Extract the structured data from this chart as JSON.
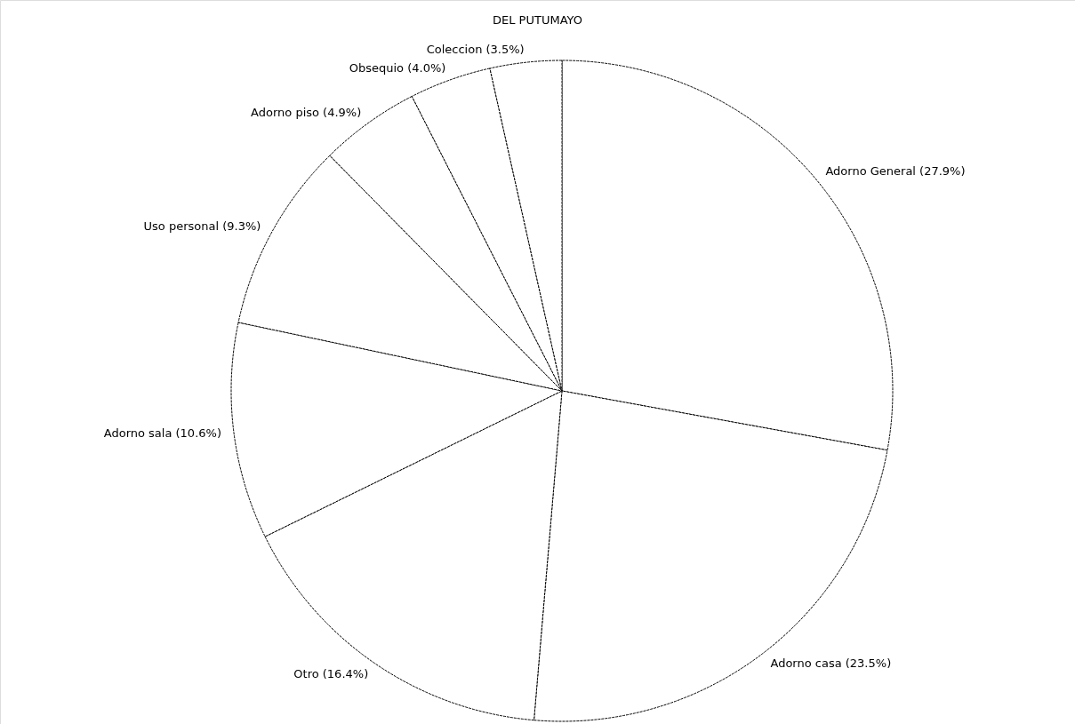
{
  "chart_data": {
    "type": "pie",
    "title": "DEL PUTUMAYO",
    "categories": [
      "Adorno General (27.9%)",
      "Adorno casa (23.5%)",
      "Otro (16.4%)",
      "Adorno sala (10.6%)",
      "Uso personal (9.3%)",
      "Adorno piso (4.9%)",
      "Obsequio (4.0%)",
      "Coleccion (3.5%)"
    ],
    "values": [
      27.9,
      23.5,
      16.4,
      10.6,
      9.3,
      4.9,
      4.0,
      3.5
    ],
    "colors": [
      "#ffffff",
      "#ffffff",
      "#ffffff",
      "#ffffff",
      "#ffffff",
      "#ffffff",
      "#ffffff",
      "#ffffff"
    ],
    "legend": false
  }
}
